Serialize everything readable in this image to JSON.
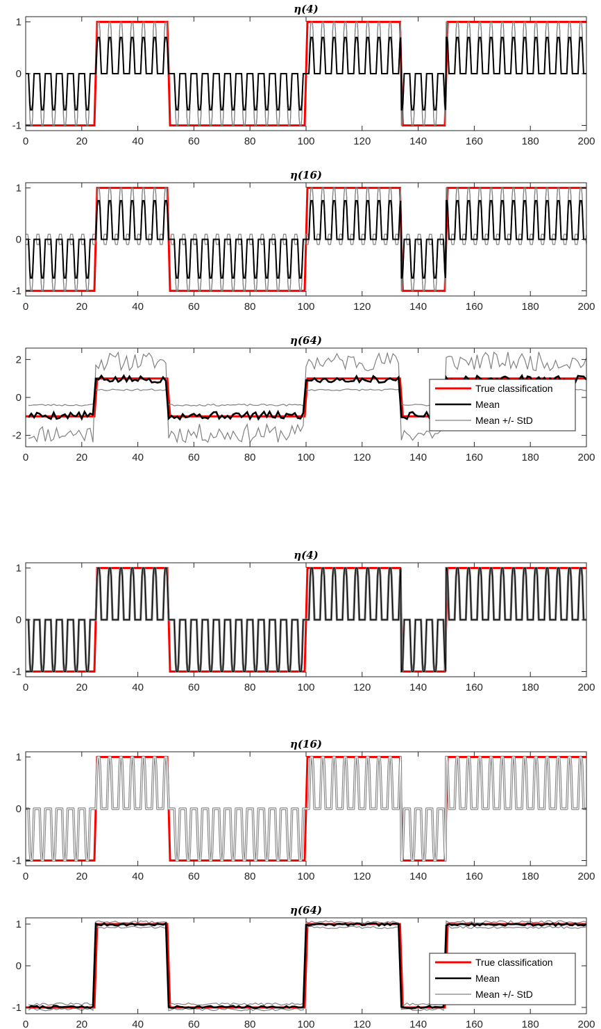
{
  "figure_groups": [
    "top",
    "bottom"
  ],
  "chart_data": [
    {
      "type": "line",
      "group": "top",
      "title": "η(4)",
      "xlim": [
        0,
        200
      ],
      "ylim": [
        -1.1,
        1.1
      ],
      "xticks": [
        0,
        20,
        40,
        60,
        80,
        100,
        120,
        140,
        160,
        180,
        200
      ],
      "yticks": [
        -1,
        0,
        1
      ],
      "legend": false,
      "series": [
        {
          "name": "True classification",
          "color": "#ff0000",
          "width": 3,
          "model": "truth"
        },
        {
          "name": "Mean +/- StD",
          "color": "#808080",
          "width": 1.2,
          "model": "osc",
          "pos": 1.0,
          "neg": -1.0,
          "phase": "upper"
        },
        {
          "name": "Mean +/- StD",
          "color": "#808080",
          "width": 1.2,
          "model": "osc",
          "pos": 1.0,
          "neg": -1.0,
          "phase": "lower"
        },
        {
          "name": "Mean",
          "color": "#000000",
          "width": 2,
          "model": "osc",
          "pos": 0.7,
          "neg": -0.7,
          "phase": "mean"
        }
      ]
    },
    {
      "type": "line",
      "group": "top",
      "title": "η(16)",
      "xlim": [
        0,
        200
      ],
      "ylim": [
        -1.1,
        1.1
      ],
      "xticks": [
        0,
        20,
        40,
        60,
        80,
        100,
        120,
        140,
        160,
        180,
        200
      ],
      "yticks": [
        -1,
        0,
        1
      ],
      "legend": false,
      "series": [
        {
          "name": "True classification",
          "color": "#ff0000",
          "width": 3,
          "model": "truth"
        },
        {
          "name": "Mean +/- StD",
          "color": "#808080",
          "width": 1.2,
          "model": "osc",
          "pos": 1.0,
          "neg": -1.0,
          "phase": "upper",
          "dip": 0.1
        },
        {
          "name": "Mean +/- StD",
          "color": "#808080",
          "width": 1.2,
          "model": "osc",
          "pos": 1.0,
          "neg": -1.0,
          "phase": "lower",
          "dip": -0.1
        },
        {
          "name": "Mean",
          "color": "#000000",
          "width": 2,
          "model": "osc",
          "pos": 0.75,
          "neg": -0.75,
          "phase": "mean"
        }
      ]
    },
    {
      "type": "line",
      "group": "top",
      "title": "η(64)",
      "xlim": [
        0,
        200
      ],
      "ylim": [
        -2.6,
        2.6
      ],
      "xticks": [
        0,
        20,
        40,
        60,
        80,
        100,
        120,
        140,
        160,
        180,
        200
      ],
      "yticks": [
        -2,
        0,
        2
      ],
      "legend": true,
      "legend_location": "right",
      "legend_entries": [
        "True classification",
        "Mean",
        "Mean +/- StD"
      ],
      "series": [
        {
          "name": "True classification",
          "color": "#ff0000",
          "width": 3,
          "model": "truth"
        },
        {
          "name": "Mean +/- StD",
          "color": "#808080",
          "width": 1.2,
          "model": "noisy",
          "base_pos": 1.9,
          "base_neg": -1.9,
          "noise": 0.5,
          "seed": 11
        },
        {
          "name": "Mean +/- StD",
          "color": "#808080",
          "width": 1.2,
          "model": "noisy",
          "base_pos": 0.4,
          "base_neg": -0.4,
          "noise": 0.05,
          "seed": 23
        },
        {
          "name": "Mean",
          "color": "#000000",
          "width": 2.6,
          "model": "noisy",
          "base_pos": 0.95,
          "base_neg": -0.95,
          "noise": 0.2,
          "seed": 5
        }
      ]
    },
    {
      "type": "line",
      "group": "bottom",
      "title": "η(4)",
      "xlim": [
        0,
        200
      ],
      "ylim": [
        -1.1,
        1.1
      ],
      "xticks": [
        0,
        20,
        40,
        60,
        80,
        100,
        120,
        140,
        160,
        180,
        200
      ],
      "yticks": [
        -1,
        0,
        1
      ],
      "legend": false,
      "series": [
        {
          "name": "True classification",
          "color": "#ff0000",
          "width": 3,
          "model": "truth"
        },
        {
          "name": "Mean +/- StD",
          "color": "#808080",
          "width": 3.2,
          "model": "osc",
          "pos": 1.0,
          "neg": -1.0,
          "phase": "mean"
        },
        {
          "name": "Mean",
          "color": "#000000",
          "width": 1.2,
          "model": "osc",
          "pos": 1.0,
          "neg": -1.0,
          "phase": "mean"
        }
      ]
    },
    {
      "type": "line",
      "group": "bottom",
      "title": "η(16)",
      "xlim": [
        0,
        200
      ],
      "ylim": [
        -1.1,
        1.1
      ],
      "xticks": [
        0,
        20,
        40,
        60,
        80,
        100,
        120,
        140,
        160,
        180,
        200
      ],
      "yticks": [
        -1,
        0,
        1
      ],
      "legend": false,
      "series": [
        {
          "name": "True classification",
          "color": "#ff0000",
          "width": 3,
          "model": "truth"
        },
        {
          "name": "Mean +/- StD",
          "color": "#808080",
          "width": 3.4,
          "model": "osc",
          "pos": 1.0,
          "neg": -1.0,
          "phase": "mean",
          "round": true
        },
        {
          "name": "Mean",
          "color": "#ffffff",
          "width": 1.2,
          "model": "osc",
          "pos": 1.0,
          "neg": -1.0,
          "phase": "mean",
          "round": true
        }
      ]
    },
    {
      "type": "line",
      "group": "bottom",
      "title": "η(64)",
      "xlim": [
        0,
        200
      ],
      "ylim": [
        -1.15,
        1.15
      ],
      "xticks": [
        0,
        20,
        40,
        60,
        80,
        100,
        120,
        140,
        160,
        180,
        200
      ],
      "yticks": [
        -1,
        0,
        1
      ],
      "legend": true,
      "legend_location": "right",
      "legend_entries": [
        "True classification",
        "Mean",
        "Mean +/- StD"
      ],
      "series": [
        {
          "name": "True classification",
          "color": "#ff0000",
          "width": 3,
          "model": "truth"
        },
        {
          "name": "Mean +/- StD",
          "color": "#808080",
          "width": 1.2,
          "model": "noisy",
          "base_pos": 1.05,
          "base_neg": -0.92,
          "noise": 0.03,
          "seed": 31
        },
        {
          "name": "Mean +/- StD",
          "color": "#808080",
          "width": 1.2,
          "model": "noisy",
          "base_pos": 0.92,
          "base_neg": -1.05,
          "noise": 0.03,
          "seed": 41
        },
        {
          "name": "Mean",
          "color": "#000000",
          "width": 2.6,
          "model": "noisy",
          "base_pos": 0.99,
          "base_neg": -0.99,
          "noise": 0.03,
          "seed": 7
        }
      ]
    }
  ],
  "truth_segments": [
    {
      "from": 0,
      "to": 25,
      "value": -1
    },
    {
      "from": 25,
      "to": 51,
      "value": 1
    },
    {
      "from": 51,
      "to": 100,
      "value": -1
    },
    {
      "from": 100,
      "to": 134,
      "value": 1
    },
    {
      "from": 134,
      "to": 150,
      "value": -1
    },
    {
      "from": 150,
      "to": 200,
      "value": 1
    }
  ]
}
